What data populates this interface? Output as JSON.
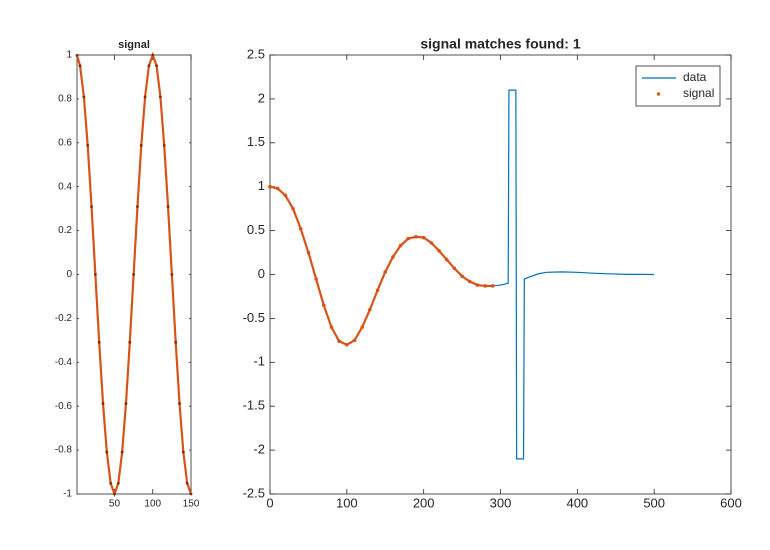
{
  "chart_data": [
    {
      "type": "line",
      "title": "signal",
      "x": [
        1,
        5,
        10,
        15,
        20,
        25,
        30,
        35,
        40,
        45,
        50,
        55,
        60,
        65,
        70,
        75,
        80,
        85,
        90,
        95,
        100,
        105,
        110,
        115,
        120,
        125,
        130,
        135,
        140,
        145,
        150
      ],
      "series": [
        {
          "name": "signal",
          "color": "#d95319",
          "style": "markers",
          "values": [
            0.998,
            0.951,
            0.809,
            0.588,
            0.309,
            0,
            -0.309,
            -0.588,
            -0.809,
            -0.951,
            -1,
            -0.951,
            -0.809,
            -0.588,
            -0.309,
            0,
            0.309,
            0.588,
            0.809,
            0.951,
            1,
            0.951,
            0.809,
            0.588,
            0.309,
            0,
            -0.309,
            -0.588,
            -0.809,
            -0.951,
            -1
          ]
        }
      ],
      "xlim": [
        1,
        150
      ],
      "xticks": [
        50,
        100,
        150
      ],
      "ylim": [
        -1,
        1
      ],
      "yticks": [
        -1,
        -0.8,
        -0.6,
        -0.4,
        -0.2,
        0,
        0.2,
        0.4,
        0.6,
        0.8,
        1
      ],
      "grid": false
    },
    {
      "type": "line",
      "title": "signal matches found: 1",
      "series": [
        {
          "name": "data",
          "color": "#0072bd",
          "style": "line",
          "x": [
            0,
            10,
            20,
            30,
            40,
            50,
            60,
            70,
            80,
            90,
            100,
            110,
            120,
            130,
            140,
            150,
            160,
            170,
            180,
            190,
            200,
            210,
            220,
            230,
            240,
            250,
            260,
            270,
            280,
            290,
            300,
            310,
            311,
            320,
            321,
            330,
            331,
            340,
            350,
            360,
            380,
            400,
            420,
            440,
            460,
            480,
            500
          ],
          "values": [
            1,
            0.98,
            0.9,
            0.75,
            0.52,
            0.25,
            -0.05,
            -0.35,
            -0.6,
            -0.76,
            -0.8,
            -0.75,
            -0.6,
            -0.4,
            -0.18,
            0.03,
            0.2,
            0.33,
            0.41,
            0.43,
            0.42,
            0.36,
            0.27,
            0.17,
            0.07,
            -0.02,
            -0.08,
            -0.12,
            -0.13,
            -0.13,
            -0.12,
            -0.1,
            2.1,
            2.1,
            -2.1,
            -2.1,
            -0.05,
            -0.02,
            0.01,
            0.025,
            0.03,
            0.025,
            0.015,
            0.008,
            0.003,
            0.001,
            0
          ]
        },
        {
          "name": "signal",
          "color": "#d95319",
          "style": "markers",
          "x": [
            0,
            10,
            20,
            30,
            40,
            50,
            60,
            70,
            80,
            90,
            100,
            110,
            120,
            130,
            140,
            150,
            160,
            170,
            180,
            190,
            200,
            210,
            220,
            230,
            240,
            250,
            260,
            270,
            280,
            290
          ],
          "values": [
            1,
            0.98,
            0.9,
            0.75,
            0.52,
            0.25,
            -0.05,
            -0.35,
            -0.6,
            -0.76,
            -0.8,
            -0.75,
            -0.6,
            -0.4,
            -0.18,
            0.03,
            0.2,
            0.33,
            0.41,
            0.43,
            0.42,
            0.36,
            0.27,
            0.17,
            0.07,
            -0.02,
            -0.08,
            -0.12,
            -0.13,
            -0.13
          ]
        }
      ],
      "xlim": [
        0,
        600
      ],
      "xticks": [
        0,
        100,
        200,
        300,
        400,
        500,
        600
      ],
      "ylim": [
        -2.5,
        2.5
      ],
      "yticks": [
        -2.5,
        -2,
        -1.5,
        -1,
        -0.5,
        0,
        0.5,
        1,
        1.5,
        2,
        2.5
      ],
      "grid": false,
      "legend": "northeast"
    }
  ]
}
